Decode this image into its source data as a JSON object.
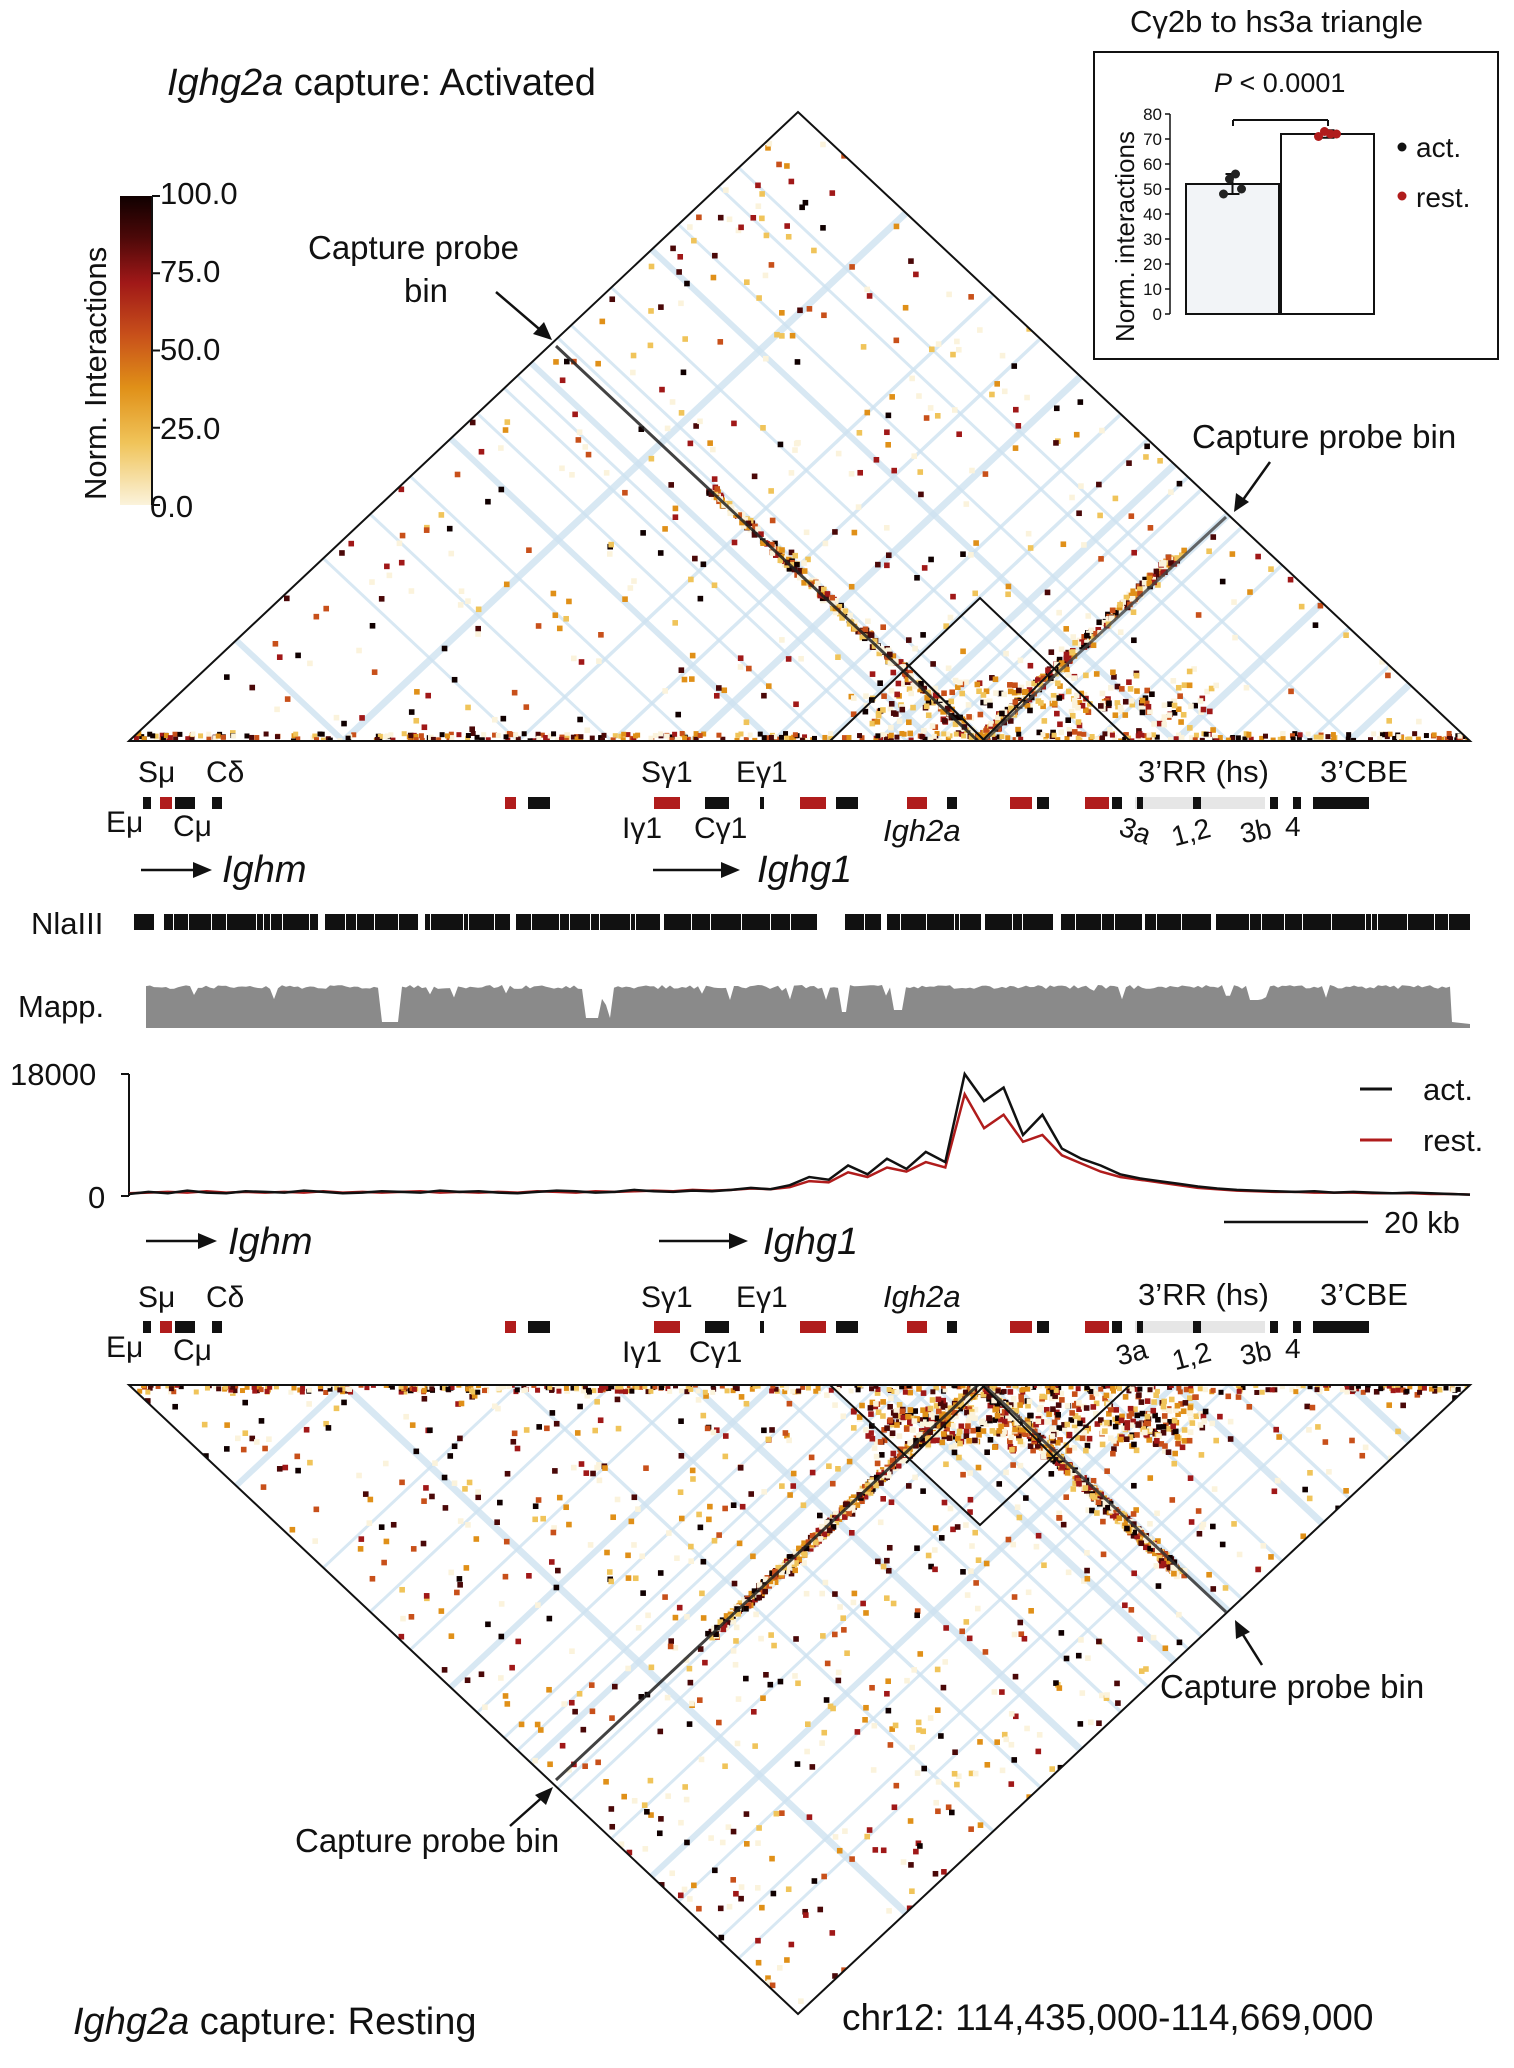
{
  "panel_top": {
    "title_gene": "Ighg2a",
    "title_rest": " capture: Activated"
  },
  "panel_bottom": {
    "title_gene": "Ighg2a",
    "title_rest": " capture: Resting"
  },
  "coords": "chr12: 114,435,000-114,669,000",
  "annotations": {
    "capture_probe_bin_top_left_line1": "Capture probe",
    "capture_probe_bin_top_left_line2": "bin",
    "capture_probe_bin": "Capture probe bin"
  },
  "colorbar": {
    "label": "Norm. Interactions",
    "ticks": [
      "100.0",
      "75.0",
      "50.0",
      "25.0",
      "0.0"
    ],
    "colors": [
      "#fbf3dc",
      "#f0c45a",
      "#e09018",
      "#c8501a",
      "#a01818",
      "#4a0808",
      "#100000"
    ]
  },
  "gene_labels": {
    "Smu": "Sμ",
    "Cdelta": "Cδ",
    "Emu": "Eμ",
    "Cmu": "Cμ",
    "Sg1": "Sγ1",
    "Eg1": "Eγ1",
    "Ig1": "Iγ1",
    "Cg1": "Cγ1",
    "Igh2a": "Igh2a",
    "rr": "3’RR (hs)",
    "cbe": "3’CBE",
    "hs3a": "3a",
    "hs12": "1,2",
    "hs3b": "3b",
    "hs4": "4",
    "Ighm": "Ighm",
    "Ighg1": "Ighg1"
  },
  "tracks": {
    "nlaiii": "NlaIII",
    "mapp": "Mapp.",
    "scale_bar": "20 kb"
  },
  "colors": {
    "act": "#111111",
    "rest": "#b01c1c",
    "grey_track": "#8a8a8a",
    "inset_bar": "#f2f4f7"
  },
  "chart_data": [
    {
      "type": "bar",
      "title": "Cγ2b to hs3a triangle",
      "ylabel": "Norm. interactions",
      "ylim": [
        0,
        80
      ],
      "yticks": [
        "0",
        "10",
        "20",
        "30",
        "40",
        "50",
        "60",
        "70",
        "80"
      ],
      "categories": [
        "act.",
        "rest."
      ],
      "values": [
        52,
        72
      ],
      "error": [
        4,
        1.5
      ],
      "points": {
        "act.": [
          48,
          54,
          56,
          50
        ],
        "rest.": [
          71,
          73,
          72,
          72
        ]
      },
      "significance": "P < 0.0001",
      "legend": [
        "act.",
        "rest."
      ],
      "legend_position": "right"
    },
    {
      "type": "line",
      "xlabel": "",
      "ylabel": "",
      "ylim": [
        0,
        18000
      ],
      "yticks": [
        "18000",
        "0"
      ],
      "x_range": [
        114435000,
        114669000
      ],
      "series": [
        {
          "name": "act.",
          "values": [
            300,
            600,
            400,
            800,
            500,
            400,
            700,
            600,
            500,
            800,
            600,
            400,
            500,
            700,
            600,
            500,
            800,
            600,
            700,
            500,
            400,
            600,
            800,
            700,
            500,
            600,
            900,
            700,
            600,
            800,
            700,
            900,
            1200,
            1000,
            1600,
            2800,
            2400,
            4500,
            3200,
            5500,
            4000,
            6500,
            5000,
            18000,
            14000,
            16000,
            9000,
            12000,
            7000,
            5500,
            4500,
            3200,
            2600,
            2200,
            1800,
            1400,
            1100,
            900,
            800,
            700,
            600,
            700,
            500,
            600,
            500,
            400,
            500,
            400,
            300,
            200
          ],
          "legend": "top-right"
        },
        {
          "name": "rest.",
          "values": [
            400,
            500,
            600,
            500,
            700,
            500,
            600,
            500,
            600,
            500,
            700,
            500,
            600,
            500,
            600,
            700,
            500,
            600,
            500,
            600,
            500,
            700,
            600,
            500,
            700,
            600,
            700,
            800,
            700,
            900,
            800,
            900,
            1100,
            1000,
            1300,
            2200,
            2000,
            3500,
            2800,
            4200,
            3600,
            5000,
            4200,
            15000,
            10000,
            12000,
            8000,
            9000,
            6000,
            4800,
            3600,
            2800,
            2400,
            2000,
            1600,
            1200,
            1000,
            800,
            700,
            600,
            600,
            500,
            500,
            500,
            400,
            400,
            400,
            300,
            300,
            200
          ]
        }
      ]
    },
    {
      "type": "heatmap",
      "title": "Ighg2a capture: Activated",
      "colorbar_range": [
        0,
        100
      ]
    },
    {
      "type": "heatmap",
      "title": "Ighg2a capture: Resting",
      "colorbar_range": [
        0,
        100
      ]
    }
  ]
}
